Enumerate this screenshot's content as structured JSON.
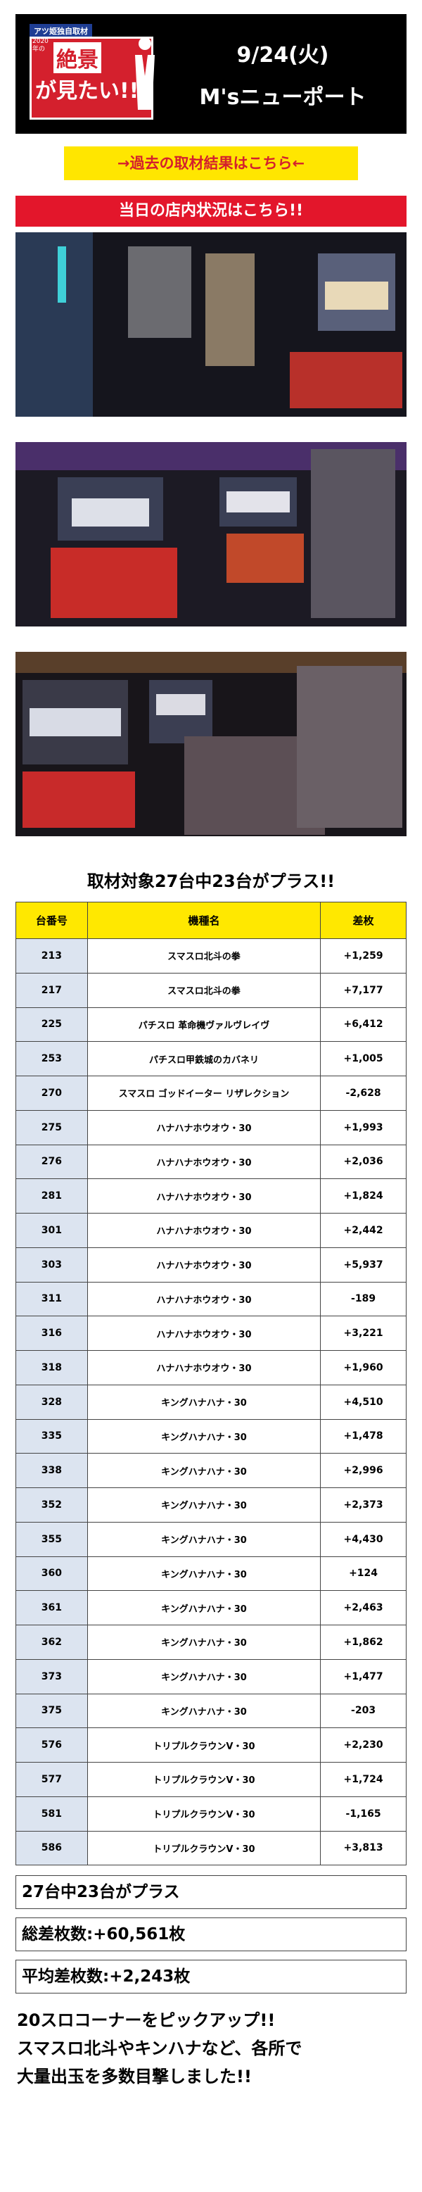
{
  "header": {
    "tag": "アツ姫独自取材",
    "small": "2020年の",
    "logo_line1": "絶景",
    "logo_line2": "が見たい!!",
    "date": "9/24(火)",
    "store": "M'sニューポート"
  },
  "past_link": "→過去の取材結果はこちら←",
  "store_status_title": "当日の店内状況はこちら!!",
  "summary_title": "取材対象27台中23台がプラス!!",
  "table": {
    "headers": [
      "台番号",
      "機種名",
      "差枚"
    ],
    "rows": [
      {
        "no": "213",
        "model": "スマスロ北斗の拳",
        "diff": "+1,259"
      },
      {
        "no": "217",
        "model": "スマスロ北斗の拳",
        "diff": "+7,177"
      },
      {
        "no": "225",
        "model": "パチスロ 革命機ヴァルヴレイヴ",
        "diff": "+6,412"
      },
      {
        "no": "253",
        "model": "パチスロ甲鉄城のカバネリ",
        "diff": "+1,005"
      },
      {
        "no": "270",
        "model": "スマスロ ゴッドイーター リザレクション",
        "diff": "-2,628"
      },
      {
        "no": "275",
        "model": "ハナハナホウオウ・30",
        "diff": "+1,993"
      },
      {
        "no": "276",
        "model": "ハナハナホウオウ・30",
        "diff": "+2,036"
      },
      {
        "no": "281",
        "model": "ハナハナホウオウ・30",
        "diff": "+1,824"
      },
      {
        "no": "301",
        "model": "ハナハナホウオウ・30",
        "diff": "+2,442"
      },
      {
        "no": "303",
        "model": "ハナハナホウオウ・30",
        "diff": "+5,937"
      },
      {
        "no": "311",
        "model": "ハナハナホウオウ・30",
        "diff": "-189"
      },
      {
        "no": "316",
        "model": "ハナハナホウオウ・30",
        "diff": "+3,221"
      },
      {
        "no": "318",
        "model": "ハナハナホウオウ・30",
        "diff": "+1,960"
      },
      {
        "no": "328",
        "model": "キングハナハナ・30",
        "diff": "+4,510"
      },
      {
        "no": "335",
        "model": "キングハナハナ・30",
        "diff": "+1,478"
      },
      {
        "no": "338",
        "model": "キングハナハナ・30",
        "diff": "+2,996"
      },
      {
        "no": "352",
        "model": "キングハナハナ・30",
        "diff": "+2,373"
      },
      {
        "no": "355",
        "model": "キングハナハナ・30",
        "diff": "+4,430"
      },
      {
        "no": "360",
        "model": "キングハナハナ・30",
        "diff": "+124"
      },
      {
        "no": "361",
        "model": "キングハナハナ・30",
        "diff": "+2,463"
      },
      {
        "no": "362",
        "model": "キングハナハナ・30",
        "diff": "+1,862"
      },
      {
        "no": "373",
        "model": "キングハナハナ・30",
        "diff": "+1,477"
      },
      {
        "no": "375",
        "model": "キングハナハナ・30",
        "diff": "-203"
      },
      {
        "no": "576",
        "model": "トリプルクラウンV・30",
        "diff": "+2,230"
      },
      {
        "no": "577",
        "model": "トリプルクラウンV・30",
        "diff": "+1,724"
      },
      {
        "no": "581",
        "model": "トリプルクラウンV・30",
        "diff": "-1,165"
      },
      {
        "no": "586",
        "model": "トリプルクラウンV・30",
        "diff": "+3,813"
      }
    ]
  },
  "stats": {
    "plus_count": "27台中23台がプラス",
    "total": "総差枚数:+60,561枚",
    "average": "平均差枚数:+2,243枚"
  },
  "footer": {
    "line1": "20スロコーナーをピックアップ!!",
    "line2": "スマスロ北斗やキンハナなど、各所で",
    "line3": "大量出玉を多数目撃しました!!"
  },
  "colors": {
    "header_bg": "#000000",
    "link_bg": "#ffe600",
    "link_text": "#d4202d",
    "section_red": "#e3162b",
    "table_header": "#ffe800",
    "row_number_bg": "#dce4f0"
  }
}
